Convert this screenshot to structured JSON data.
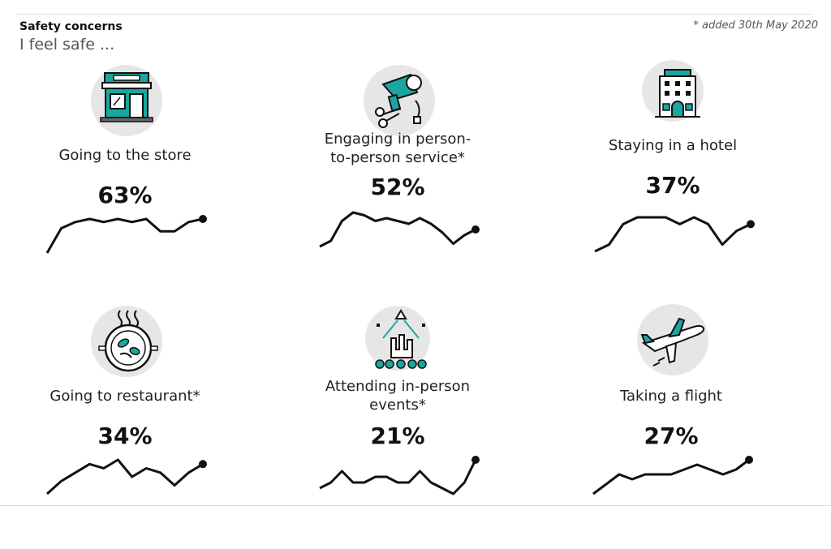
{
  "header": {
    "title": "Safety concerns",
    "subtitle": "I feel safe ...",
    "note": "* added 30th May 2020"
  },
  "colors": {
    "accent": "#1aa7a1",
    "icon_bg": "#e6e6e6",
    "line": "#111111"
  },
  "chart_data": [
    {
      "type": "line",
      "title": "Going to the store",
      "value_label": "63%",
      "icon": "store-icon",
      "values": [
        52,
        60,
        62,
        63,
        62,
        63,
        62,
        63,
        59,
        59,
        62,
        63
      ]
    },
    {
      "type": "line",
      "title": "Engaging in person-\nto-person service*",
      "value_label": "52%",
      "icon": "hairdryer-scissors-icon",
      "values": [
        46,
        48,
        55,
        58,
        57,
        55,
        56,
        55,
        54,
        56,
        54,
        51,
        47,
        50,
        52
      ]
    },
    {
      "type": "line",
      "title": "Staying in a hotel",
      "value_label": "37%",
      "icon": "hotel-icon",
      "values": [
        33,
        34,
        37,
        38,
        38,
        38,
        37,
        38,
        37,
        34,
        36,
        37
      ]
    },
    {
      "type": "line",
      "title": "Going to restaurant*",
      "value_label": "34%",
      "icon": "restaurant-dish-icon",
      "values": [
        27,
        30,
        32,
        34,
        33,
        35,
        31,
        33,
        32,
        29,
        32,
        34
      ]
    },
    {
      "type": "line",
      "title": "Attending in-person\nevents*",
      "value_label": "21%",
      "icon": "concert-icon",
      "values": [
        16,
        17,
        19,
        17,
        17,
        18,
        18,
        17,
        17,
        19,
        17,
        16,
        15,
        17,
        21
      ]
    },
    {
      "type": "line",
      "title": "Taking a flight",
      "value_label": "27%",
      "icon": "airplane-icon",
      "values": [
        20,
        22,
        24,
        23,
        24,
        24,
        24,
        25,
        26,
        25,
        24,
        25,
        27
      ]
    }
  ]
}
